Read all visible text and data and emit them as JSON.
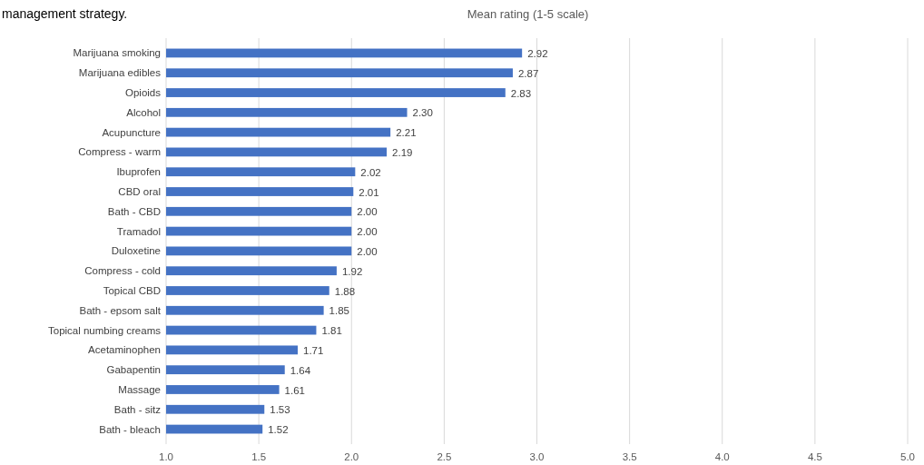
{
  "chart_data": {
    "type": "bar",
    "orientation": "horizontal",
    "title": "Mean rating (1-5 scale)",
    "annotations": [
      "management strategy."
    ],
    "categories": [
      "Marijuana smoking",
      "Marijuana edibles",
      "Opioids",
      "Alcohol",
      "Acupuncture",
      "Compress - warm",
      "Ibuprofen",
      "CBD oral",
      "Bath - CBD",
      "Tramadol",
      "Duloxetine",
      "Compress - cold",
      "Topical CBD",
      "Bath - epsom salt",
      "Topical numbing creams",
      "Acetaminophen",
      "Gabapentin",
      "Massage",
      "Bath - sitz",
      "Bath - bleach"
    ],
    "values": [
      2.92,
      2.87,
      2.83,
      2.3,
      2.21,
      2.19,
      2.02,
      2.01,
      2.0,
      2.0,
      2.0,
      1.92,
      1.88,
      1.85,
      1.81,
      1.71,
      1.64,
      1.61,
      1.53,
      1.52
    ],
    "value_labels": [
      "2.92",
      "2.87",
      "2.83",
      "2.30",
      "2.21",
      "2.19",
      "2.02",
      "2.01",
      "2.00",
      "2.00",
      "2.00",
      "1.92",
      "1.88",
      "1.85",
      "1.81",
      "1.71",
      "1.64",
      "1.61",
      "1.53",
      "1.52"
    ],
    "color": "#4472c4",
    "xlim": [
      1,
      5
    ],
    "xticks": [
      {
        "value": 1,
        "label": "1.0"
      },
      {
        "value": 1.5,
        "label": "1.5"
      },
      {
        "value": 2,
        "label": "2.0"
      },
      {
        "value": 2.5,
        "label": "2.5"
      },
      {
        "value": 3,
        "label": "3.0"
      },
      {
        "value": 3.5,
        "label": "3.5"
      },
      {
        "value": 4,
        "label": "4.0"
      },
      {
        "value": 4.5,
        "label": "4.5"
      },
      {
        "value": 5,
        "label": "5.0"
      }
    ],
    "grid": "x"
  }
}
